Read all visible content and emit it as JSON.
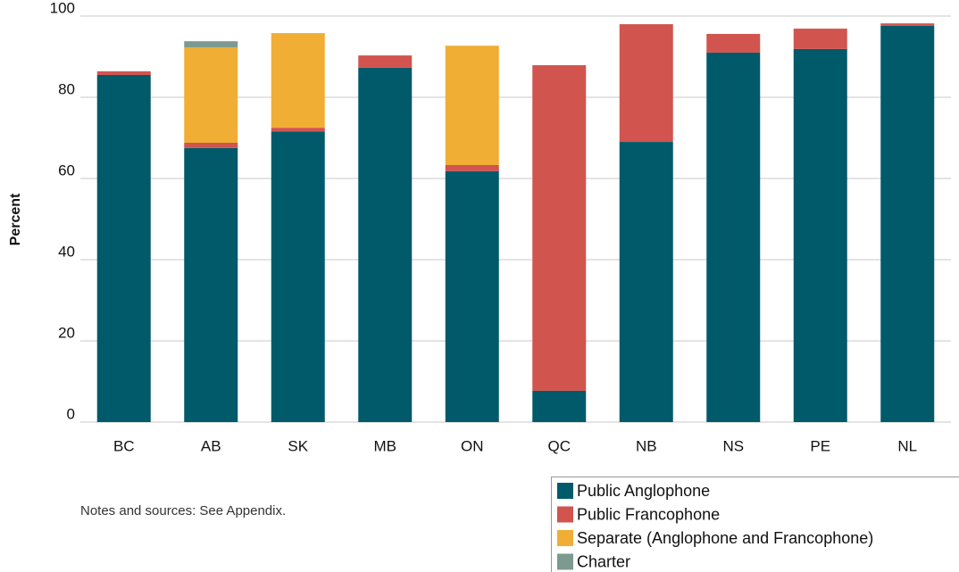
{
  "chart_data": {
    "type": "stacked_bar",
    "y_label": "Percent",
    "note": "Notes and sources: See Appendix.",
    "categories": [
      "BC",
      "AB",
      "SK",
      "MB",
      "ON",
      "QC",
      "NB",
      "NS",
      "PE",
      "NL"
    ],
    "series": [
      {
        "name": "Public Anglophone",
        "color": "#005a6a",
        "values": [
          85.5,
          67.5,
          71.6,
          87.3,
          61.8,
          7.7,
          69.0,
          91.0,
          91.9,
          97.6
        ]
      },
      {
        "name": "Public Francophone",
        "color": "#d1544f",
        "values": [
          0.9,
          1.3,
          0.9,
          3.0,
          1.5,
          80.2,
          29.0,
          4.6,
          5.0,
          0.6
        ]
      },
      {
        "name": "Separate (Anglophone and Francophone)",
        "color": "#f0ae35",
        "values": [
          null,
          23.5,
          23.3,
          null,
          29.4,
          null,
          null,
          null,
          null,
          null
        ]
      },
      {
        "name": "Charter",
        "color": "#7c9a8f",
        "values": [
          null,
          1.5,
          null,
          null,
          null,
          null,
          null,
          null,
          null,
          null
        ]
      }
    ],
    "ylim": [
      0,
      100
    ],
    "yticks": [
      0,
      20,
      40,
      60,
      80,
      100
    ],
    "grid": true,
    "legend": "bottom-right"
  }
}
